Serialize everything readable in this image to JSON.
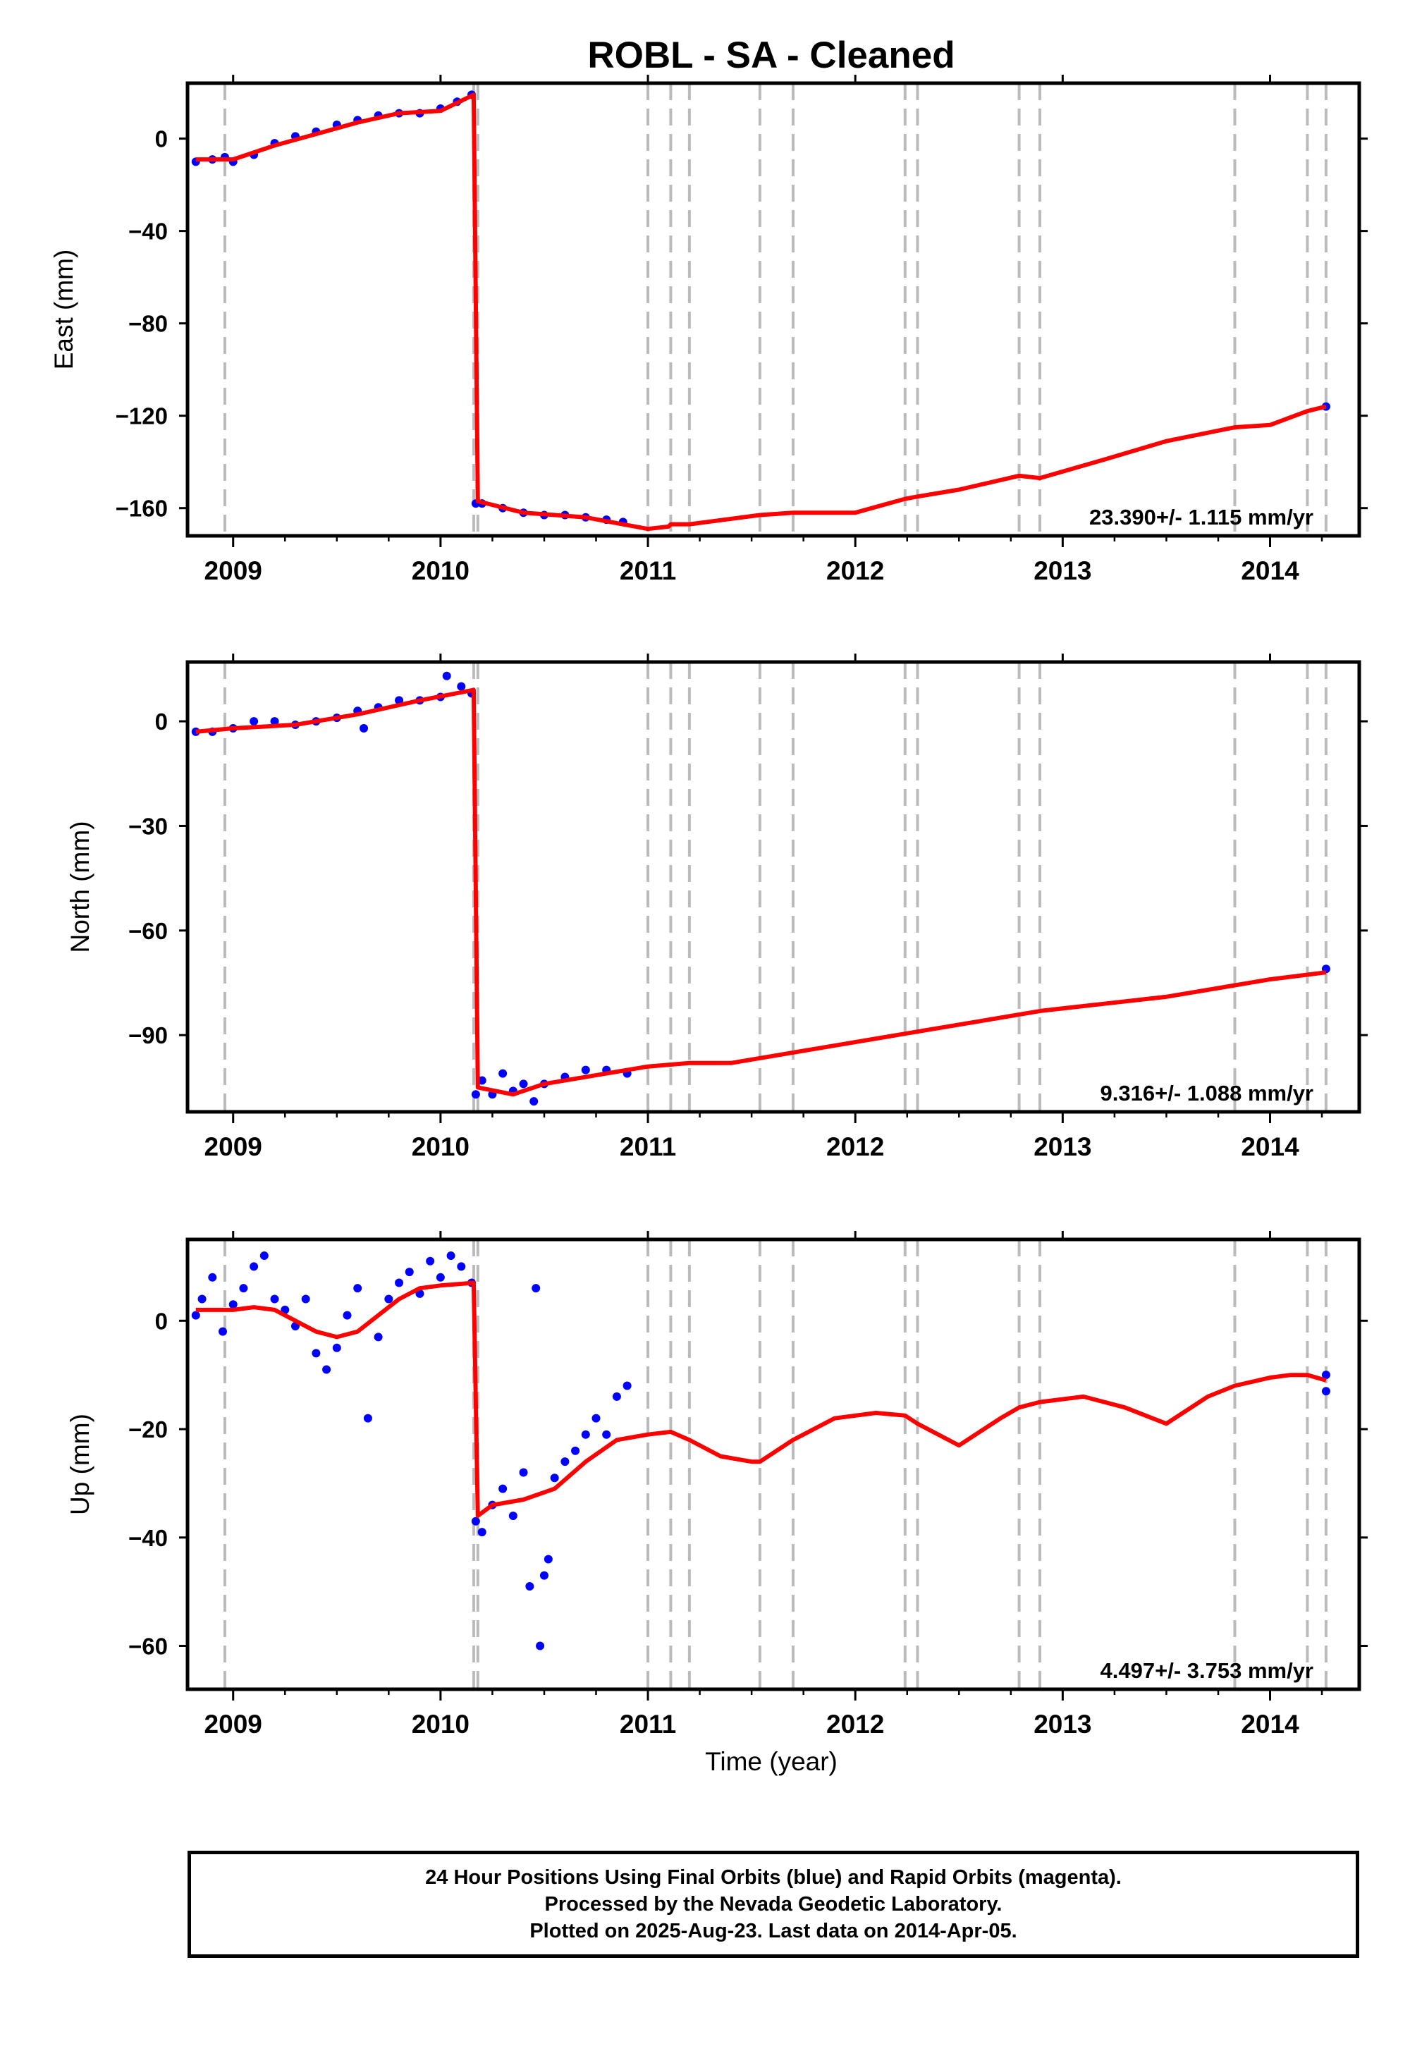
{
  "figure": {
    "title": "ROBL  - SA - Cleaned",
    "xlabel": "Time (year)"
  },
  "colors": {
    "data_points": "#0000ff",
    "model": "#ff0000",
    "event_lines": "#bbbbbb",
    "frame": "#000000"
  },
  "footer": {
    "line1": "24 Hour Positions Using Final Orbits (blue) and Rapid Orbits (magenta).",
    "line2": "Processed by the Nevada Geodetic Laboratory.",
    "line3": "Plotted on 2025-Aug-23. Last data on 2014-Apr-05."
  },
  "chart_data": [
    {
      "type": "scatter",
      "component": "east",
      "ylabel": "East (mm)",
      "xlim": [
        2008.78,
        2014.43
      ],
      "ylim": [
        -172,
        24
      ],
      "xticks": [
        2009,
        2010,
        2011,
        2012,
        2013,
        2014
      ],
      "yticks": [
        0,
        -40,
        -80,
        -120,
        -160
      ],
      "rate_label": "23.390+/- 1.115 mm/yr",
      "event_lines": [
        2008.96,
        2010.16,
        2010.18,
        2011.0,
        2011.11,
        2011.2,
        2011.54,
        2011.7,
        2012.24,
        2012.3,
        2012.79,
        2012.89,
        2013.83,
        2014.18,
        2014.27
      ],
      "series": [
        {
          "role": "data",
          "x": [
            2008.82,
            2008.9,
            2008.96,
            2009.0,
            2009.1,
            2009.2,
            2009.3,
            2009.4,
            2009.5,
            2009.6,
            2009.7,
            2009.8,
            2009.9,
            2010.0,
            2010.08,
            2010.15,
            2010.17,
            2010.2,
            2010.3,
            2010.4,
            2010.5,
            2010.6,
            2010.7,
            2010.8,
            2010.88,
            2014.27
          ],
          "y": [
            -10,
            -9,
            -8,
            -10,
            -7,
            -2,
            1,
            3,
            6,
            8,
            10,
            11,
            11,
            13,
            16,
            19,
            -158,
            -158,
            -160,
            -162,
            -163,
            -163,
            -164,
            -165,
            -166,
            -116
          ]
        },
        {
          "role": "model",
          "x": [
            2008.82,
            2009.0,
            2009.2,
            2009.4,
            2009.6,
            2009.8,
            2010.0,
            2010.16,
            2010.18,
            2010.4,
            2010.7,
            2011.0,
            2011.1,
            2011.11,
            2011.2,
            2011.54,
            2011.7,
            2012.0,
            2012.24,
            2012.3,
            2012.5,
            2012.79,
            2012.89,
            2013.2,
            2013.5,
            2013.83,
            2014.0,
            2014.18,
            2014.27
          ],
          "y": [
            -9,
            -9,
            -3,
            2,
            7,
            11,
            12,
            19,
            -157,
            -162,
            -164,
            -169,
            -168,
            -167,
            -167,
            -163,
            -162,
            -162,
            -156,
            -155,
            -152,
            -146,
            -147,
            -139,
            -131,
            -125,
            -124,
            -118,
            -116
          ]
        }
      ]
    },
    {
      "type": "scatter",
      "component": "north",
      "ylabel": "North (mm)",
      "xlim": [
        2008.78,
        2014.43
      ],
      "ylim": [
        -112,
        17
      ],
      "xticks": [
        2009,
        2010,
        2011,
        2012,
        2013,
        2014
      ],
      "yticks": [
        0,
        -30,
        -60,
        -90
      ],
      "rate_label": "9.316+/- 1.088 mm/yr",
      "event_lines": [
        2008.96,
        2010.16,
        2010.18,
        2011.0,
        2011.11,
        2011.2,
        2011.54,
        2011.7,
        2012.24,
        2012.3,
        2012.79,
        2012.89,
        2013.83,
        2014.18,
        2014.27
      ],
      "series": [
        {
          "role": "data",
          "x": [
            2008.82,
            2008.9,
            2009.0,
            2009.1,
            2009.2,
            2009.3,
            2009.4,
            2009.5,
            2009.6,
            2009.63,
            2009.7,
            2009.8,
            2009.9,
            2010.0,
            2010.03,
            2010.1,
            2010.15,
            2010.17,
            2010.2,
            2010.25,
            2010.3,
            2010.35,
            2010.4,
            2010.45,
            2010.5,
            2010.6,
            2010.7,
            2010.8,
            2010.9,
            2014.27
          ],
          "y": [
            -3,
            -3,
            -2,
            0,
            0,
            -1,
            0,
            1,
            3,
            -2,
            4,
            6,
            6,
            7,
            13,
            10,
            8,
            -107,
            -103,
            -107,
            -101,
            -106,
            -104,
            -109,
            -104,
            -102,
            -100,
            -100,
            -101,
            -71
          ]
        },
        {
          "role": "model",
          "x": [
            2008.82,
            2009.0,
            2009.3,
            2009.6,
            2009.9,
            2010.16,
            2010.18,
            2010.35,
            2010.5,
            2010.8,
            2011.0,
            2011.2,
            2011.4,
            2011.7,
            2012.0,
            2012.3,
            2012.6,
            2012.9,
            2013.2,
            2013.5,
            2013.8,
            2014.0,
            2014.27
          ],
          "y": [
            -3,
            -2,
            -1,
            2,
            6,
            9,
            -105,
            -107,
            -104,
            -101,
            -99,
            -98,
            -98,
            -95,
            -92,
            -89,
            -86,
            -83,
            -81,
            -79,
            -76,
            -74,
            -72
          ]
        }
      ]
    },
    {
      "type": "scatter",
      "component": "up",
      "ylabel": "Up (mm)",
      "xlim": [
        2008.78,
        2014.43
      ],
      "ylim": [
        -68,
        15
      ],
      "xticks": [
        2009,
        2010,
        2011,
        2012,
        2013,
        2014
      ],
      "yticks": [
        0,
        -20,
        -40,
        -60
      ],
      "rate_label": "4.497+/- 3.753 mm/yr",
      "event_lines": [
        2008.96,
        2010.16,
        2010.18,
        2011.0,
        2011.11,
        2011.2,
        2011.54,
        2011.7,
        2012.24,
        2012.3,
        2012.79,
        2012.89,
        2013.83,
        2014.18,
        2014.27
      ],
      "series": [
        {
          "role": "data",
          "x": [
            2008.82,
            2008.85,
            2008.9,
            2008.95,
            2009.0,
            2009.05,
            2009.1,
            2009.15,
            2009.2,
            2009.25,
            2009.3,
            2009.35,
            2009.4,
            2009.45,
            2009.5,
            2009.55,
            2009.6,
            2009.65,
            2009.7,
            2009.75,
            2009.8,
            2009.85,
            2009.9,
            2009.95,
            2010.0,
            2010.05,
            2010.1,
            2010.15,
            2010.17,
            2010.2,
            2010.25,
            2010.3,
            2010.35,
            2010.4,
            2010.43,
            2010.46,
            2010.48,
            2010.5,
            2010.52,
            2010.55,
            2010.6,
            2010.65,
            2010.7,
            2010.75,
            2010.8,
            2010.85,
            2010.9,
            2014.27,
            2014.27
          ],
          "y": [
            1,
            4,
            8,
            -2,
            3,
            6,
            10,
            12,
            4,
            2,
            -1,
            4,
            -6,
            -9,
            -5,
            1,
            6,
            -18,
            -3,
            4,
            7,
            9,
            5,
            11,
            8,
            12,
            10,
            7,
            -37,
            -39,
            -34,
            -31,
            -36,
            -28,
            -49,
            6,
            -60,
            -47,
            -44,
            -29,
            -26,
            -24,
            -21,
            -18,
            -21,
            -14,
            -12,
            -10,
            -13
          ]
        },
        {
          "role": "model",
          "x": [
            2008.82,
            2009.0,
            2009.1,
            2009.2,
            2009.3,
            2009.4,
            2009.5,
            2009.6,
            2009.7,
            2009.8,
            2009.9,
            2010.0,
            2010.16,
            2010.18,
            2010.25,
            2010.4,
            2010.55,
            2010.7,
            2010.85,
            2011.0,
            2011.11,
            2011.2,
            2011.35,
            2011.5,
            2011.54,
            2011.7,
            2011.9,
            2012.1,
            2012.24,
            2012.3,
            2012.5,
            2012.7,
            2012.79,
            2012.89,
            2013.1,
            2013.3,
            2013.5,
            2013.7,
            2013.83,
            2014.0,
            2014.1,
            2014.18,
            2014.27
          ],
          "y": [
            2,
            2,
            2.5,
            2,
            0,
            -2,
            -3,
            -2,
            1,
            4,
            6,
            6.5,
            7,
            -36,
            -34,
            -33,
            -31,
            -26,
            -22,
            -21,
            -20.5,
            -22,
            -25,
            -26,
            -26,
            -22,
            -18,
            -17,
            -17.5,
            -19,
            -23,
            -18,
            -16,
            -15,
            -14,
            -16,
            -19,
            -14,
            -12,
            -10.5,
            -10,
            -10,
            -11
          ]
        }
      ]
    }
  ]
}
